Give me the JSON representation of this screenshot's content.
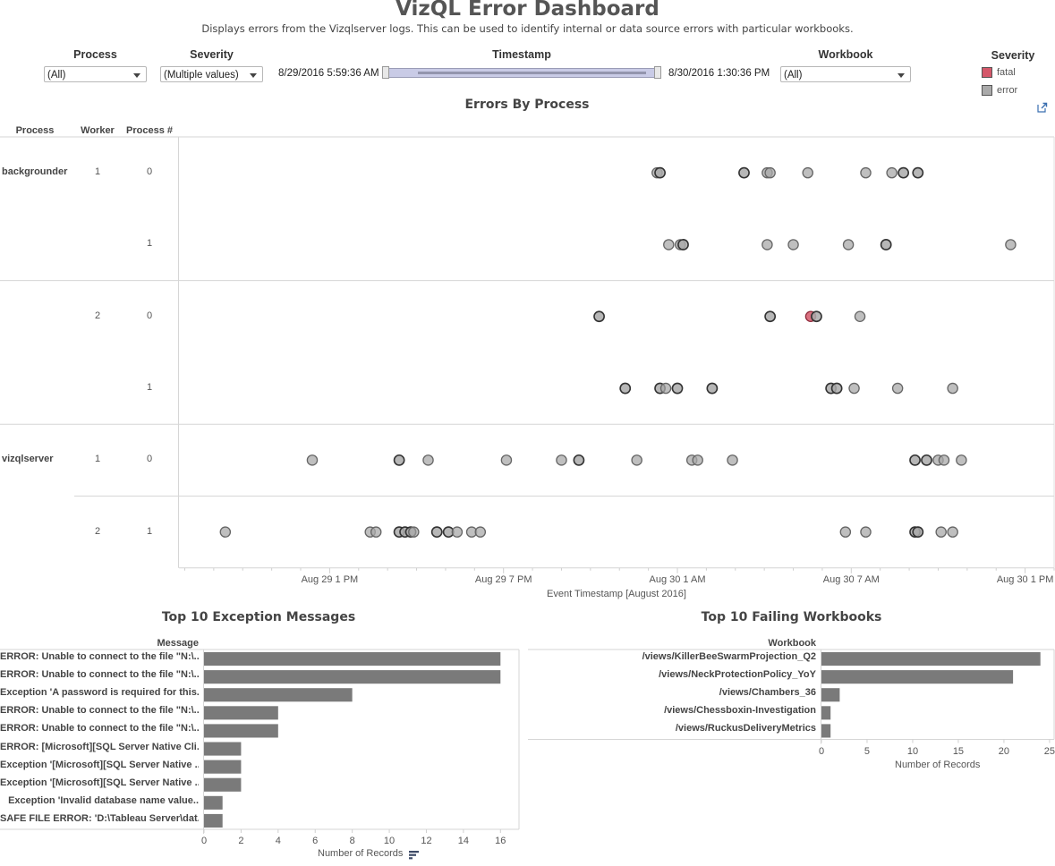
{
  "header": {
    "title": "VizQL Error Dashboard",
    "subtitle": "Displays errors from the Vizqlserver logs.  This can be used to identify internal or data source errors with particular workbooks."
  },
  "filters": {
    "process": {
      "label": "Process",
      "value": "(All)"
    },
    "severity": {
      "label": "Severity",
      "value": "(Multiple values)"
    },
    "timestamp": {
      "label": "Timestamp",
      "start": "8/29/2016 5:59:36 AM",
      "end": "8/30/2016 1:30:36 PM"
    },
    "workbook": {
      "label": "Workbook",
      "value": "(All)"
    }
  },
  "legend": {
    "title": "Severity",
    "items": [
      {
        "label": "fatal",
        "color": "#d4586a"
      },
      {
        "label": "error",
        "color": "#aaaaaa"
      }
    ]
  },
  "icons": {
    "export": "external-link-icon",
    "sort": "sort-descending-icon"
  },
  "chart_data": [
    {
      "type": "scatter",
      "title": "Errors By Process",
      "row_headers": [
        "Process",
        "Worker",
        "Process #"
      ],
      "xlabel": "Event Timestamp [August 2016]",
      "x_unit": "hours since Aug 29 00:00",
      "xlim": [
        7.8,
        38.0
      ],
      "x_ticks": [
        {
          "value": 13,
          "label": "Aug 29 1 PM"
        },
        {
          "value": 19,
          "label": "Aug 29 7 PM"
        },
        {
          "value": 25,
          "label": "Aug 30 1 AM"
        },
        {
          "value": 31,
          "label": "Aug 30 7 AM"
        },
        {
          "value": 37,
          "label": "Aug 30 1 PM"
        }
      ],
      "colors": {
        "fatal": "#d4586a",
        "error": "#aaaaaa"
      },
      "rows": [
        {
          "process": "backgrounder",
          "worker": "1",
          "process_num": "0",
          "points": [
            [
              24.3,
              "error"
            ],
            [
              24.4,
              "error",
              2
            ],
            [
              27.3,
              "error",
              2
            ],
            [
              28.1,
              "error"
            ],
            [
              28.2,
              "error"
            ],
            [
              29.5,
              "error"
            ],
            [
              31.5,
              "error"
            ],
            [
              32.4,
              "error"
            ],
            [
              32.8,
              "error",
              2
            ],
            [
              33.3,
              "error",
              2
            ]
          ]
        },
        {
          "process": "",
          "worker": "",
          "process_num": "1",
          "points": [
            [
              24.7,
              "error"
            ],
            [
              25.1,
              "error"
            ],
            [
              25.2,
              "error",
              2
            ],
            [
              28.1,
              "error"
            ],
            [
              29.0,
              "error"
            ],
            [
              30.9,
              "error"
            ],
            [
              32.2,
              "error",
              2
            ],
            [
              36.5,
              "error"
            ]
          ]
        },
        {
          "process": "",
          "worker": "2",
          "process_num": "0",
          "points": [
            [
              22.3,
              "error",
              2
            ],
            [
              28.2,
              "error",
              2
            ],
            [
              29.6,
              "fatal"
            ],
            [
              29.8,
              "error",
              2
            ],
            [
              31.3,
              "error"
            ]
          ]
        },
        {
          "process": "",
          "worker": "",
          "process_num": "1",
          "points": [
            [
              23.2,
              "error",
              2
            ],
            [
              24.4,
              "error",
              2
            ],
            [
              24.6,
              "error"
            ],
            [
              25.0,
              "error",
              2
            ],
            [
              26.2,
              "error",
              2
            ],
            [
              30.3,
              "error",
              2
            ],
            [
              30.5,
              "error",
              2
            ],
            [
              31.1,
              "error"
            ],
            [
              32.6,
              "error"
            ],
            [
              34.5,
              "error"
            ]
          ]
        },
        {
          "process": "vizqlserver",
          "worker": "1",
          "process_num": "0",
          "points": [
            [
              12.4,
              "error"
            ],
            [
              15.4,
              "error",
              2
            ],
            [
              16.4,
              "error"
            ],
            [
              19.1,
              "error"
            ],
            [
              21.0,
              "error"
            ],
            [
              21.6,
              "error",
              2
            ],
            [
              23.6,
              "error"
            ],
            [
              25.5,
              "error"
            ],
            [
              25.7,
              "error"
            ],
            [
              26.9,
              "error"
            ],
            [
              33.2,
              "error",
              2
            ],
            [
              33.6,
              "error",
              2
            ],
            [
              34.0,
              "error"
            ],
            [
              34.2,
              "error"
            ],
            [
              34.8,
              "error"
            ]
          ]
        },
        {
          "process": "",
          "worker": "2",
          "process_num": "1",
          "points": [
            [
              9.4,
              "error"
            ],
            [
              14.4,
              "error"
            ],
            [
              14.6,
              "error"
            ],
            [
              15.4,
              "error",
              2
            ],
            [
              15.6,
              "error",
              2
            ],
            [
              15.8,
              "error",
              2
            ],
            [
              15.9,
              "error"
            ],
            [
              16.7,
              "error",
              2
            ],
            [
              17.1,
              "error",
              2
            ],
            [
              17.4,
              "error"
            ],
            [
              17.9,
              "error"
            ],
            [
              18.2,
              "error"
            ],
            [
              30.8,
              "error"
            ],
            [
              31.5,
              "error"
            ],
            [
              33.2,
              "error",
              2
            ],
            [
              33.3,
              "error",
              2
            ],
            [
              34.1,
              "error"
            ],
            [
              34.5,
              "error"
            ]
          ]
        }
      ],
      "group_dividers_after": [
        1,
        3
      ],
      "subgroup_dividers_after": [
        1,
        3,
        4
      ]
    },
    {
      "type": "bar",
      "title": "Top 10 Exception Messages",
      "category_header": "Message",
      "categories": [
        "ERROR: Unable to connect to the file \"N:\\..",
        "ERROR: Unable to connect to the file \"N:\\..",
        "Exception 'A password is required for this..",
        "ERROR: Unable to connect to the file \"N:\\..",
        "ERROR: Unable to connect to the file \"N:\\..",
        "ERROR: [Microsoft][SQL Server Native Cli..",
        "Exception '[Microsoft][SQL Server Native ..",
        "Exception '[Microsoft][SQL Server Native ..",
        "Exception 'Invalid database name value..",
        "SAFE FILE ERROR: 'D:\\Tableau Server\\dat.."
      ],
      "values": [
        16,
        16,
        8,
        4,
        4,
        2,
        2,
        2,
        1,
        1
      ],
      "xlabel": "Number of Records",
      "xlim": [
        0,
        17
      ],
      "x_ticks": [
        0,
        2,
        4,
        6,
        8,
        10,
        12,
        14,
        16
      ],
      "bar_color": "#7a7a7a"
    },
    {
      "type": "bar",
      "title": "Top 10 Failing Workbooks",
      "category_header": "Workbook",
      "categories": [
        "/views/KillerBeeSwarmProjection_Q2",
        "/views/NeckProtectionPolicy_YoY",
        "/views/Chambers_36",
        "/views/Chessboxin-Investigation",
        "/views/RuckusDeliveryMetrics"
      ],
      "values": [
        24,
        21,
        2,
        1,
        1
      ],
      "xlabel": "Number of Records",
      "xlim": [
        0,
        25.5
      ],
      "x_ticks": [
        0,
        5,
        10,
        15,
        20,
        25
      ],
      "bar_color": "#7a7a7a"
    }
  ]
}
